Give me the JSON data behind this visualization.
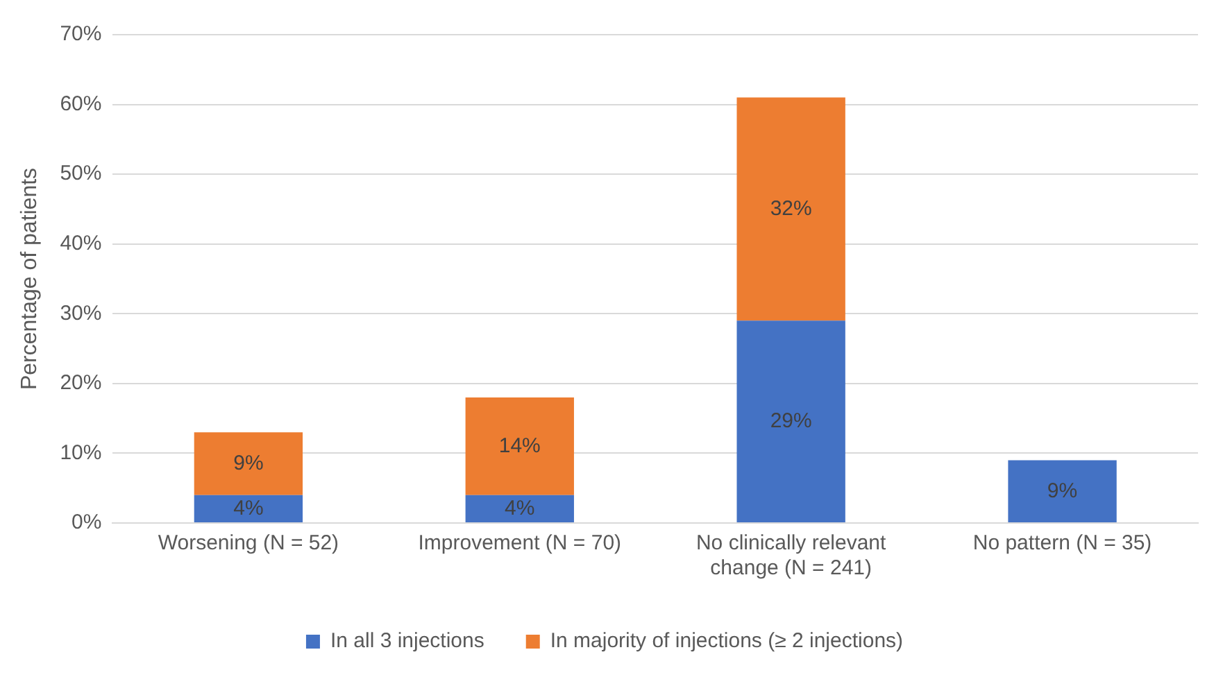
{
  "chart_data": {
    "type": "bar",
    "stacked": true,
    "ylabel": "Percentage of patients",
    "categories": [
      "Worsening (N = 52)",
      "Improvement (N = 70)",
      "No clinically relevant change (N = 241)",
      "No pattern (N = 35)"
    ],
    "series": [
      {
        "name": "In all 3 injections",
        "color": "#4472c4",
        "values": [
          4,
          4,
          29,
          9
        ],
        "value_labels": [
          "4%",
          "4%",
          "29%",
          "9%"
        ]
      },
      {
        "name": "In majority of injections (≥ 2 injections)",
        "color": "#ed7d31",
        "values": [
          9,
          14,
          32,
          null
        ],
        "value_labels": [
          "9%",
          "14%",
          "32%",
          null
        ]
      }
    ],
    "ylim": [
      0,
      70
    ],
    "yticks": [
      {
        "value": 0,
        "label": "0%"
      },
      {
        "value": 10,
        "label": "10%"
      },
      {
        "value": 20,
        "label": "20%"
      },
      {
        "value": 30,
        "label": "30%"
      },
      {
        "value": 40,
        "label": "40%"
      },
      {
        "value": 50,
        "label": "50%"
      },
      {
        "value": 60,
        "label": "60%"
      },
      {
        "value": 70,
        "label": "70%"
      }
    ],
    "grid": "y",
    "legend": "bottom"
  }
}
